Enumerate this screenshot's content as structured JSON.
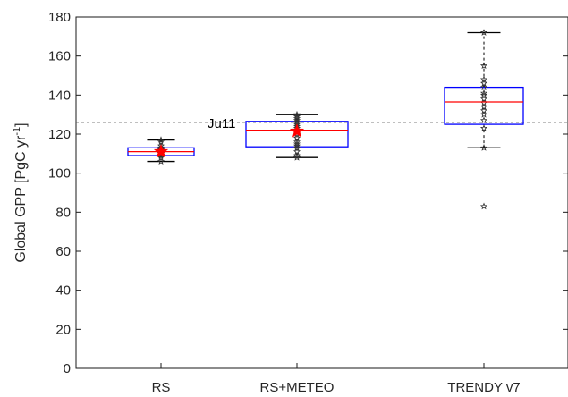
{
  "chart_data": {
    "type": "box",
    "ylabel": "Global GPP [PgC yr",
    "ylabel_sup": "-1",
    "ylabel_suffix": "]",
    "ylim": [
      0,
      180
    ],
    "yticks": [
      0,
      20,
      40,
      60,
      80,
      100,
      120,
      140,
      160,
      180
    ],
    "categories": [
      "RS",
      "RS+METEO",
      "TRENDY v7"
    ],
    "reference_line": {
      "label": "Ju11",
      "value": 126
    },
    "boxes": [
      {
        "category": "RS",
        "q1": 109,
        "median": 111,
        "q3": 113,
        "whisker_low": 106,
        "whisker_high": 117,
        "mean": 111,
        "points": [
          106,
          108,
          109,
          110,
          110,
          111,
          111,
          112,
          112,
          113,
          114,
          116,
          117
        ]
      },
      {
        "category": "RS+METEO",
        "q1": 113.5,
        "median": 122,
        "q3": 126.5,
        "whisker_low": 108,
        "whisker_high": 130,
        "mean": 121.5,
        "points": [
          108,
          109,
          111,
          113,
          114,
          115,
          116,
          118,
          120,
          121,
          122,
          123,
          124,
          125,
          126,
          127,
          128,
          129,
          130
        ]
      },
      {
        "category": "TRENDY v7",
        "q1": 125,
        "median": 136.5,
        "q3": 144,
        "whisker_low": 113,
        "whisker_high": 172,
        "mean": null,
        "points": [
          83,
          113,
          123,
          127,
          130,
          132,
          134,
          136,
          138,
          140,
          141,
          144,
          146,
          148,
          155,
          172
        ]
      }
    ],
    "colors": {
      "box": "#0000ff",
      "median": "#ff0000",
      "mean": "#ff0000",
      "whisker": "#000000",
      "reference": "#555555"
    }
  }
}
